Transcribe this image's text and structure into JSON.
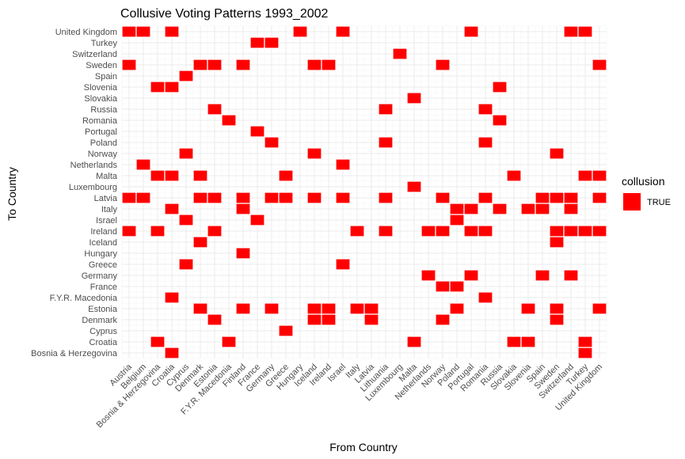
{
  "chart_data": {
    "type": "heatmap",
    "title": "Collusive Voting Patterns 1993_2002",
    "xlabel": "From Country",
    "ylabel": "To Country",
    "x_categories": [
      "Austria",
      "Belgium",
      "Bosnia & Herzegovina",
      "Croatia",
      "Cyprus",
      "Denmark",
      "Estonia",
      "F.Y.R. Macedonia",
      "Finland",
      "France",
      "Germany",
      "Greece",
      "Hungary",
      "Iceland",
      "Ireland",
      "Israel",
      "Italy",
      "Latvia",
      "Lithuania",
      "Luxembourg",
      "Malta",
      "Netherlands",
      "Norway",
      "Poland",
      "Portugal",
      "Romania",
      "Russia",
      "Slovakia",
      "Slovenia",
      "Spain",
      "Sweden",
      "Switzerland",
      "Turkey",
      "United Kingdom"
    ],
    "y_categories": [
      "Bosnia & Herzegovina",
      "Croatia",
      "Cyprus",
      "Denmark",
      "Estonia",
      "F.Y.R. Macedonia",
      "France",
      "Germany",
      "Greece",
      "Hungary",
      "Iceland",
      "Ireland",
      "Israel",
      "Italy",
      "Latvia",
      "Luxembourg",
      "Malta",
      "Netherlands",
      "Norway",
      "Poland",
      "Portugal",
      "Romania",
      "Russia",
      "Slovakia",
      "Slovenia",
      "Spain",
      "Sweden",
      "Switzerland",
      "Turkey",
      "United Kingdom"
    ],
    "fill_color": "#ff0000",
    "legend": {
      "title": "collusion",
      "entries": [
        "TRUE"
      ],
      "position": "right"
    },
    "grid": true,
    "cells": [
      {
        "from": "Croatia",
        "to": "Bosnia & Herzegovina",
        "value": "TRUE"
      },
      {
        "from": "Turkey",
        "to": "Bosnia & Herzegovina",
        "value": "TRUE"
      },
      {
        "from": "Bosnia & Herzegovina",
        "to": "Croatia",
        "value": "TRUE"
      },
      {
        "from": "F.Y.R. Macedonia",
        "to": "Croatia",
        "value": "TRUE"
      },
      {
        "from": "Malta",
        "to": "Croatia",
        "value": "TRUE"
      },
      {
        "from": "Slovakia",
        "to": "Croatia",
        "value": "TRUE"
      },
      {
        "from": "Slovenia",
        "to": "Croatia",
        "value": "TRUE"
      },
      {
        "from": "Turkey",
        "to": "Croatia",
        "value": "TRUE"
      },
      {
        "from": "Greece",
        "to": "Cyprus",
        "value": "TRUE"
      },
      {
        "from": "Estonia",
        "to": "Denmark",
        "value": "TRUE"
      },
      {
        "from": "Iceland",
        "to": "Denmark",
        "value": "TRUE"
      },
      {
        "from": "Ireland",
        "to": "Denmark",
        "value": "TRUE"
      },
      {
        "from": "Latvia",
        "to": "Denmark",
        "value": "TRUE"
      },
      {
        "from": "Norway",
        "to": "Denmark",
        "value": "TRUE"
      },
      {
        "from": "Sweden",
        "to": "Denmark",
        "value": "TRUE"
      },
      {
        "from": "Denmark",
        "to": "Estonia",
        "value": "TRUE"
      },
      {
        "from": "Finland",
        "to": "Estonia",
        "value": "TRUE"
      },
      {
        "from": "Germany",
        "to": "Estonia",
        "value": "TRUE"
      },
      {
        "from": "Iceland",
        "to": "Estonia",
        "value": "TRUE"
      },
      {
        "from": "Ireland",
        "to": "Estonia",
        "value": "TRUE"
      },
      {
        "from": "Italy",
        "to": "Estonia",
        "value": "TRUE"
      },
      {
        "from": "Latvia",
        "to": "Estonia",
        "value": "TRUE"
      },
      {
        "from": "Poland",
        "to": "Estonia",
        "value": "TRUE"
      },
      {
        "from": "Slovenia",
        "to": "Estonia",
        "value": "TRUE"
      },
      {
        "from": "Sweden",
        "to": "Estonia",
        "value": "TRUE"
      },
      {
        "from": "United Kingdom",
        "to": "Estonia",
        "value": "TRUE"
      },
      {
        "from": "Croatia",
        "to": "F.Y.R. Macedonia",
        "value": "TRUE"
      },
      {
        "from": "Romania",
        "to": "F.Y.R. Macedonia",
        "value": "TRUE"
      },
      {
        "from": "Norway",
        "to": "France",
        "value": "TRUE"
      },
      {
        "from": "Poland",
        "to": "France",
        "value": "TRUE"
      },
      {
        "from": "Netherlands",
        "to": "Germany",
        "value": "TRUE"
      },
      {
        "from": "Portugal",
        "to": "Germany",
        "value": "TRUE"
      },
      {
        "from": "Spain",
        "to": "Germany",
        "value": "TRUE"
      },
      {
        "from": "Switzerland",
        "to": "Germany",
        "value": "TRUE"
      },
      {
        "from": "Cyprus",
        "to": "Greece",
        "value": "TRUE"
      },
      {
        "from": "Israel",
        "to": "Greece",
        "value": "TRUE"
      },
      {
        "from": "Finland",
        "to": "Hungary",
        "value": "TRUE"
      },
      {
        "from": "Denmark",
        "to": "Iceland",
        "value": "TRUE"
      },
      {
        "from": "Sweden",
        "to": "Iceland",
        "value": "TRUE"
      },
      {
        "from": "Austria",
        "to": "Ireland",
        "value": "TRUE"
      },
      {
        "from": "Bosnia & Herzegovina",
        "to": "Ireland",
        "value": "TRUE"
      },
      {
        "from": "Estonia",
        "to": "Ireland",
        "value": "TRUE"
      },
      {
        "from": "Italy",
        "to": "Ireland",
        "value": "TRUE"
      },
      {
        "from": "Lithuania",
        "to": "Ireland",
        "value": "TRUE"
      },
      {
        "from": "Netherlands",
        "to": "Ireland",
        "value": "TRUE"
      },
      {
        "from": "Norway",
        "to": "Ireland",
        "value": "TRUE"
      },
      {
        "from": "Portugal",
        "to": "Ireland",
        "value": "TRUE"
      },
      {
        "from": "Romania",
        "to": "Ireland",
        "value": "TRUE"
      },
      {
        "from": "Sweden",
        "to": "Ireland",
        "value": "TRUE"
      },
      {
        "from": "Switzerland",
        "to": "Ireland",
        "value": "TRUE"
      },
      {
        "from": "Turkey",
        "to": "Ireland",
        "value": "TRUE"
      },
      {
        "from": "United Kingdom",
        "to": "Ireland",
        "value": "TRUE"
      },
      {
        "from": "Cyprus",
        "to": "Israel",
        "value": "TRUE"
      },
      {
        "from": "France",
        "to": "Israel",
        "value": "TRUE"
      },
      {
        "from": "Poland",
        "to": "Israel",
        "value": "TRUE"
      },
      {
        "from": "Croatia",
        "to": "Italy",
        "value": "TRUE"
      },
      {
        "from": "Finland",
        "to": "Italy",
        "value": "TRUE"
      },
      {
        "from": "Poland",
        "to": "Italy",
        "value": "TRUE"
      },
      {
        "from": "Portugal",
        "to": "Italy",
        "value": "TRUE"
      },
      {
        "from": "Russia",
        "to": "Italy",
        "value": "TRUE"
      },
      {
        "from": "Slovenia",
        "to": "Italy",
        "value": "TRUE"
      },
      {
        "from": "Spain",
        "to": "Italy",
        "value": "TRUE"
      },
      {
        "from": "Switzerland",
        "to": "Italy",
        "value": "TRUE"
      },
      {
        "from": "Austria",
        "to": "Latvia",
        "value": "TRUE"
      },
      {
        "from": "Belgium",
        "to": "Latvia",
        "value": "TRUE"
      },
      {
        "from": "Denmark",
        "to": "Latvia",
        "value": "TRUE"
      },
      {
        "from": "Estonia",
        "to": "Latvia",
        "value": "TRUE"
      },
      {
        "from": "Finland",
        "to": "Latvia",
        "value": "TRUE"
      },
      {
        "from": "Germany",
        "to": "Latvia",
        "value": "TRUE"
      },
      {
        "from": "Greece",
        "to": "Latvia",
        "value": "TRUE"
      },
      {
        "from": "Iceland",
        "to": "Latvia",
        "value": "TRUE"
      },
      {
        "from": "Israel",
        "to": "Latvia",
        "value": "TRUE"
      },
      {
        "from": "Lithuania",
        "to": "Latvia",
        "value": "TRUE"
      },
      {
        "from": "Norway",
        "to": "Latvia",
        "value": "TRUE"
      },
      {
        "from": "Romania",
        "to": "Latvia",
        "value": "TRUE"
      },
      {
        "from": "Spain",
        "to": "Latvia",
        "value": "TRUE"
      },
      {
        "from": "Sweden",
        "to": "Latvia",
        "value": "TRUE"
      },
      {
        "from": "Switzerland",
        "to": "Latvia",
        "value": "TRUE"
      },
      {
        "from": "United Kingdom",
        "to": "Latvia",
        "value": "TRUE"
      },
      {
        "from": "Malta",
        "to": "Luxembourg",
        "value": "TRUE"
      },
      {
        "from": "Bosnia & Herzegovina",
        "to": "Malta",
        "value": "TRUE"
      },
      {
        "from": "Croatia",
        "to": "Malta",
        "value": "TRUE"
      },
      {
        "from": "Denmark",
        "to": "Malta",
        "value": "TRUE"
      },
      {
        "from": "Greece",
        "to": "Malta",
        "value": "TRUE"
      },
      {
        "from": "Slovakia",
        "to": "Malta",
        "value": "TRUE"
      },
      {
        "from": "Turkey",
        "to": "Malta",
        "value": "TRUE"
      },
      {
        "from": "United Kingdom",
        "to": "Malta",
        "value": "TRUE"
      },
      {
        "from": "Belgium",
        "to": "Netherlands",
        "value": "TRUE"
      },
      {
        "from": "Israel",
        "to": "Netherlands",
        "value": "TRUE"
      },
      {
        "from": "Cyprus",
        "to": "Norway",
        "value": "TRUE"
      },
      {
        "from": "Iceland",
        "to": "Norway",
        "value": "TRUE"
      },
      {
        "from": "Sweden",
        "to": "Norway",
        "value": "TRUE"
      },
      {
        "from": "Germany",
        "to": "Poland",
        "value": "TRUE"
      },
      {
        "from": "Lithuania",
        "to": "Poland",
        "value": "TRUE"
      },
      {
        "from": "Romania",
        "to": "Poland",
        "value": "TRUE"
      },
      {
        "from": "France",
        "to": "Portugal",
        "value": "TRUE"
      },
      {
        "from": "F.Y.R. Macedonia",
        "to": "Romania",
        "value": "TRUE"
      },
      {
        "from": "Russia",
        "to": "Romania",
        "value": "TRUE"
      },
      {
        "from": "Estonia",
        "to": "Russia",
        "value": "TRUE"
      },
      {
        "from": "Lithuania",
        "to": "Russia",
        "value": "TRUE"
      },
      {
        "from": "Romania",
        "to": "Russia",
        "value": "TRUE"
      },
      {
        "from": "Malta",
        "to": "Slovakia",
        "value": "TRUE"
      },
      {
        "from": "Bosnia & Herzegovina",
        "to": "Slovenia",
        "value": "TRUE"
      },
      {
        "from": "Croatia",
        "to": "Slovenia",
        "value": "TRUE"
      },
      {
        "from": "Russia",
        "to": "Slovenia",
        "value": "TRUE"
      },
      {
        "from": "Cyprus",
        "to": "Spain",
        "value": "TRUE"
      },
      {
        "from": "Austria",
        "to": "Sweden",
        "value": "TRUE"
      },
      {
        "from": "Denmark",
        "to": "Sweden",
        "value": "TRUE"
      },
      {
        "from": "Estonia",
        "to": "Sweden",
        "value": "TRUE"
      },
      {
        "from": "Finland",
        "to": "Sweden",
        "value": "TRUE"
      },
      {
        "from": "Iceland",
        "to": "Sweden",
        "value": "TRUE"
      },
      {
        "from": "Ireland",
        "to": "Sweden",
        "value": "TRUE"
      },
      {
        "from": "Norway",
        "to": "Sweden",
        "value": "TRUE"
      },
      {
        "from": "United Kingdom",
        "to": "Sweden",
        "value": "TRUE"
      },
      {
        "from": "Luxembourg",
        "to": "Switzerland",
        "value": "TRUE"
      },
      {
        "from": "France",
        "to": "Turkey",
        "value": "TRUE"
      },
      {
        "from": "Germany",
        "to": "Turkey",
        "value": "TRUE"
      },
      {
        "from": "Austria",
        "to": "United Kingdom",
        "value": "TRUE"
      },
      {
        "from": "Belgium",
        "to": "United Kingdom",
        "value": "TRUE"
      },
      {
        "from": "Croatia",
        "to": "United Kingdom",
        "value": "TRUE"
      },
      {
        "from": "Hungary",
        "to": "United Kingdom",
        "value": "TRUE"
      },
      {
        "from": "Israel",
        "to": "United Kingdom",
        "value": "TRUE"
      },
      {
        "from": "Portugal",
        "to": "United Kingdom",
        "value": "TRUE"
      },
      {
        "from": "Switzerland",
        "to": "United Kingdom",
        "value": "TRUE"
      },
      {
        "from": "Turkey",
        "to": "United Kingdom",
        "value": "TRUE"
      }
    ]
  }
}
